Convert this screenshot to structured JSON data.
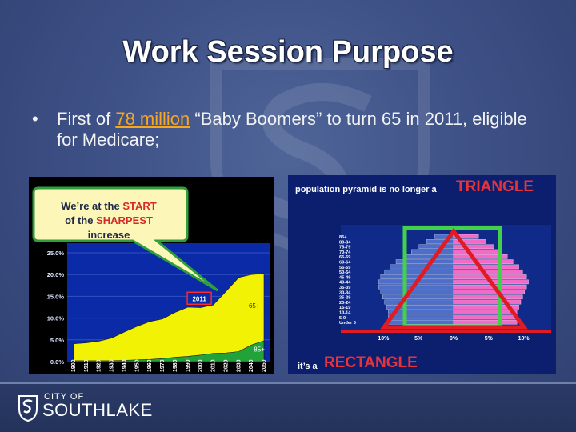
{
  "slide": {
    "title": "Work Session Purpose",
    "bullet_dot": "•",
    "bullet_prefix": "First of ",
    "bullet_highlight": "78 million",
    "bullet_suffix": " “Baby Boomers” to turn 65 in 2011, eligible for Medicare;"
  },
  "left_chart": {
    "callout_line1_a": "We’re at the ",
    "callout_line1_b": "START",
    "callout_line2_a": "of the ",
    "callout_line2_b": "SHARPEST",
    "callout_line3": "increase",
    "marker_label": "2011",
    "series_65": "65+",
    "series_85": "85+",
    "y_ticks": [
      "25.0%",
      "20.0%",
      "15.0%",
      "10.0%",
      "5.0%",
      "0.0%"
    ],
    "x_ticks": [
      "1900",
      "1910",
      "1920",
      "1930",
      "1940",
      "1950",
      "1960",
      "1970",
      "1980",
      "1990",
      "2000",
      "2010",
      "2020",
      "2030",
      "2040",
      "2050"
    ],
    "chart_data": {
      "type": "area",
      "x": [
        1900,
        1910,
        1920,
        1930,
        1940,
        1950,
        1960,
        1970,
        1980,
        1990,
        2000,
        2010,
        2020,
        2030,
        2040,
        2050
      ],
      "series": [
        {
          "name": "65+",
          "values": [
            4.1,
            4.3,
            4.7,
            5.4,
            6.8,
            8.1,
            9.2,
            9.8,
            11.3,
            12.5,
            12.4,
            13.0,
            16.1,
            19.3,
            20.0,
            20.2
          ]
        },
        {
          "name": "85+",
          "values": [
            0.2,
            0.2,
            0.2,
            0.2,
            0.3,
            0.4,
            0.5,
            0.7,
            1.0,
            1.2,
            1.5,
            1.9,
            2.0,
            2.3,
            3.8,
            4.8
          ]
        }
      ],
      "ylim": [
        0,
        25
      ],
      "colors": {
        "65+": "#f2f205",
        "85+": "#22a33a",
        "plot_bg": "#0a2aa8"
      }
    }
  },
  "right_chart": {
    "top_label": "population pyramid is no longer a",
    "top_emphasis": "TRIANGLE",
    "bottom_label": "it’s a",
    "bottom_emphasis": "RECTANGLE",
    "age_groups": [
      "85+",
      "80-84",
      "75-79",
      "70-74",
      "65-69",
      "60-64",
      "55-59",
      "50-54",
      "45-49",
      "40-44",
      "35-39",
      "30-34",
      "25-29",
      "20-24",
      "15-19",
      "10-14",
      "5-9",
      "Under 5"
    ],
    "x_ticks": [
      "10%",
      "5%",
      "0%",
      "5%",
      "10%"
    ],
    "chart_data": {
      "type": "bar",
      "categories": [
        "85+",
        "80-84",
        "75-79",
        "70-74",
        "65-69",
        "60-64",
        "55-59",
        "50-54",
        "45-49",
        "40-44",
        "35-39",
        "30-34",
        "25-29",
        "20-24",
        "15-19",
        "10-14",
        "5-9",
        "Under 5"
      ],
      "series": [
        {
          "name": "left",
          "values": [
            2.0,
            2.8,
            3.6,
            4.4,
            5.2,
            6.0,
            6.6,
            7.2,
            7.6,
            7.8,
            7.8,
            7.6,
            7.4,
            7.2,
            7.0,
            6.8,
            6.8,
            6.8
          ]
        },
        {
          "name": "right",
          "values": [
            2.6,
            3.4,
            4.2,
            4.8,
            5.6,
            6.2,
            6.8,
            7.2,
            7.6,
            7.8,
            7.6,
            7.4,
            7.2,
            7.0,
            6.8,
            6.6,
            6.6,
            6.6
          ]
        }
      ],
      "xlim": [
        -10,
        10
      ],
      "colors": {
        "left": "#4d6fc9",
        "right": "#f06cc7",
        "frame": "#43d14c",
        "triangle": "#e01b24"
      }
    }
  },
  "footer": {
    "logo_small": "CITY OF",
    "logo_big": "SOUTHLAKE"
  }
}
